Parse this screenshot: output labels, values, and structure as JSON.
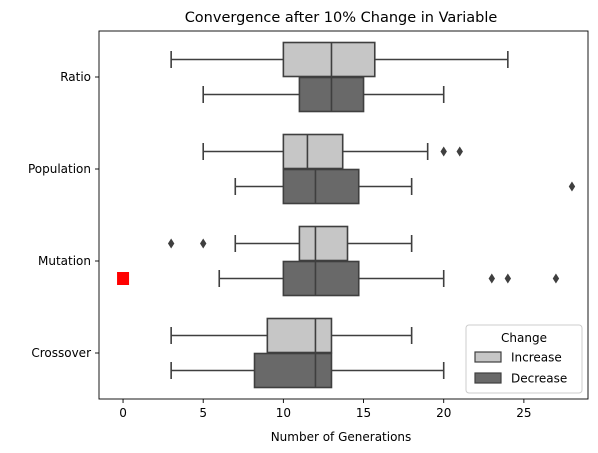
{
  "chart_data": {
    "type": "boxplot",
    "orientation": "horizontal",
    "title": "Convergence after 10% Change in Variable",
    "xlabel": "Number of Generations",
    "ylabel": "",
    "xlim": [
      -1.5,
      29
    ],
    "xticks": [
      0,
      5,
      10,
      15,
      20,
      25
    ],
    "categories": [
      "Ratio",
      "Population",
      "Mutation",
      "Crossover"
    ],
    "grid": false,
    "legend": {
      "title": "Change",
      "placement": "lower-right"
    },
    "series": [
      {
        "name": "Increase",
        "color": "#c6c6c6",
        "boxes": [
          {
            "category": "Ratio",
            "whislo": 3,
            "q1": 10,
            "med": 13,
            "q3": 15.7,
            "whishi": 24,
            "fliers": []
          },
          {
            "category": "Population",
            "whislo": 5,
            "q1": 10,
            "med": 11.5,
            "q3": 13.7,
            "whishi": 19,
            "fliers": [
              20,
              21
            ]
          },
          {
            "category": "Mutation",
            "whislo": 7,
            "q1": 11,
            "med": 12,
            "q3": 14,
            "whishi": 18,
            "fliers": [
              3,
              5
            ]
          },
          {
            "category": "Crossover",
            "whislo": 3,
            "q1": 9,
            "med": 12,
            "q3": 13,
            "whishi": 18,
            "fliers": []
          }
        ]
      },
      {
        "name": "Decrease",
        "color": "#696969",
        "boxes": [
          {
            "category": "Ratio",
            "whislo": 5,
            "q1": 11,
            "med": 13,
            "q3": 15,
            "whishi": 20,
            "fliers": []
          },
          {
            "category": "Population",
            "whislo": 7,
            "q1": 10,
            "med": 12,
            "q3": 14.7,
            "whishi": 18,
            "fliers": [
              28
            ]
          },
          {
            "category": "Mutation",
            "whislo": 6,
            "q1": 10,
            "med": 12,
            "q3": 14.7,
            "whishi": 20,
            "fliers": [
              23,
              24,
              27
            ]
          },
          {
            "category": "Crossover",
            "whislo": 3,
            "q1": 8.2,
            "med": 12,
            "q3": 13,
            "whishi": 20,
            "fliers": []
          }
        ]
      }
    ],
    "annotations": [
      {
        "type": "marker",
        "shape": "square",
        "color": "#ff0000",
        "x": 0,
        "category": "Mutation",
        "series": "Decrease"
      }
    ]
  }
}
